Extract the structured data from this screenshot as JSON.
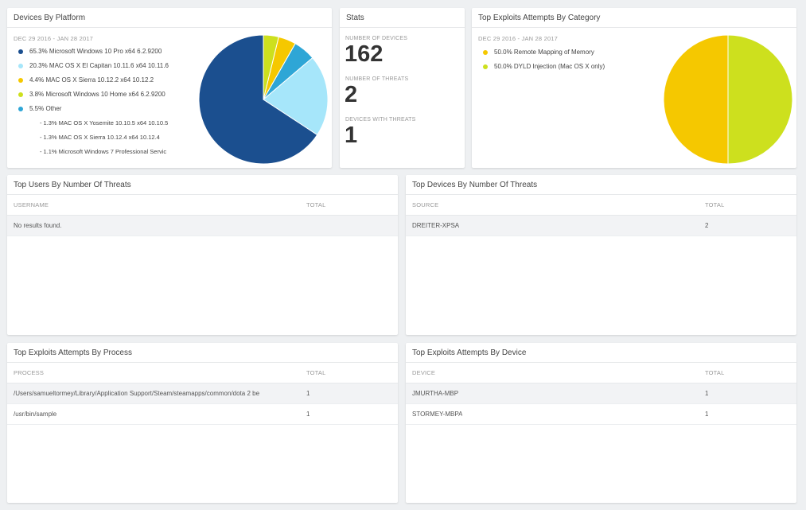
{
  "platform_card": {
    "title": "Devices By Platform",
    "date_range": "DEC 29 2016 - JAN 28 2017",
    "legend": [
      {
        "label": "65.3% Microsoft Windows 10 Pro x64 6.2.9200",
        "color": "#1b4f8f"
      },
      {
        "label": "20.3% MAC OS X El Capitan 10.11.6 x64 10.11.6",
        "color": "#a6e6fa"
      },
      {
        "label": "4.4% MAC OS X Sierra 10.12.2 x64 10.12.2",
        "color": "#f5c800"
      },
      {
        "label": "3.8% Microsoft Windows 10 Home x64 6.2.9200",
        "color": "#cde01e"
      },
      {
        "label": "5.5% Other",
        "color": "#2ea6d6"
      }
    ],
    "other_items": [
      "1.3% MAC OS X Yosemite 10.10.5 x64 10.10.5",
      "1.3% MAC OS X Sierra 10.12.4 x64 10.12.4",
      "1.1% Microsoft Windows 7 Professional Servic"
    ],
    "chart_data": {
      "type": "pie",
      "categories": [
        "Microsoft Windows 10 Pro x64 6.2.9200",
        "MAC OS X El Capitan 10.11.6 x64 10.11.6",
        "MAC OS X Sierra 10.12.2 x64 10.12.2",
        "Microsoft Windows 10 Home x64 6.2.9200",
        "Other"
      ],
      "values": [
        65.3,
        20.3,
        4.4,
        3.8,
        5.5
      ],
      "colors": [
        "#1b4f8f",
        "#a6e6fa",
        "#2ea6d6",
        "#f5c800",
        "#cde01e"
      ],
      "slice_order": [
        "Microsoft Windows 10 Pro x64 6.2.9200",
        "MAC OS X El Capitan 10.11.6 x64 10.11.6",
        "Other",
        "MAC OS X Sierra 10.12.2 x64 10.12.2",
        "Microsoft Windows 10 Home x64 6.2.9200"
      ]
    }
  },
  "stats_card": {
    "title": "Stats",
    "items": [
      {
        "label": "NUMBER OF DEVICES",
        "value": "162"
      },
      {
        "label": "NUMBER OF THREATS",
        "value": "2"
      },
      {
        "label": "DEVICES WITH THREATS",
        "value": "1"
      }
    ]
  },
  "category_card": {
    "title": "Top Exploits Attempts By Category",
    "date_range": "DEC 29 2016 - JAN 28 2017",
    "legend": [
      {
        "label": "50.0% Remote Mapping of Memory",
        "color": "#f5c800"
      },
      {
        "label": "50.0% DYLD Injection (Mac OS X only)",
        "color": "#cde01e"
      }
    ],
    "chart_data": {
      "type": "pie",
      "categories": [
        "Remote Mapping of Memory",
        "DYLD Injection (Mac OS X only)"
      ],
      "values": [
        50.0,
        50.0
      ],
      "colors": [
        "#f5c800",
        "#cde01e"
      ]
    }
  },
  "users_card": {
    "title": "Top Users By Number Of Threats",
    "col1": "USERNAME",
    "col2": "TOTAL",
    "empty_text": "No results found."
  },
  "devices_card": {
    "title": "Top Devices By Number Of Threats",
    "col1": "SOURCE",
    "col2": "TOTAL",
    "rows": [
      {
        "name": "DREITER-XPSA",
        "total": "2"
      }
    ]
  },
  "process_card": {
    "title": "Top Exploits Attempts By Process",
    "col1": "PROCESS",
    "col2": "TOTAL",
    "rows": [
      {
        "name": "/Users/samueltormey/Library/Application Support/Steam/steamapps/common/dota 2 be",
        "total": "1"
      },
      {
        "name": "/usr/bin/sample",
        "total": "1"
      }
    ]
  },
  "device_exploit_card": {
    "title": "Top Exploits Attempts By Device",
    "col1": "DEVICE",
    "col2": "TOTAL",
    "rows": [
      {
        "name": "JMURTHA-MBP",
        "total": "1"
      },
      {
        "name": "STORMEY-MBPA",
        "total": "1"
      }
    ]
  }
}
